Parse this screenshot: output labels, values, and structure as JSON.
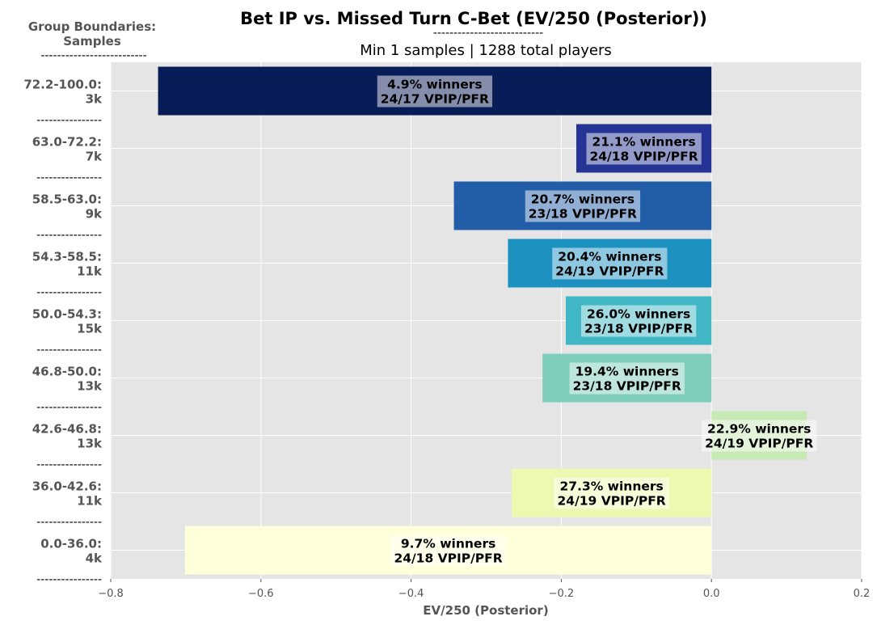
{
  "chart_data": {
    "type": "bar",
    "orientation": "horizontal",
    "title": "Bet IP vs. Missed Turn C-Bet (EV/250 (Posterior))",
    "title_underline": "---------------------------",
    "subtitle": "Min 1 samples | 1288 total players",
    "group_header_line1": "Group Boundaries:",
    "group_header_line2": "Samples",
    "group_header_underline": "--------------------------",
    "separator": "----------------",
    "xlabel": "EV/250 (Posterior)",
    "xlim": [
      -0.8,
      0.2
    ],
    "xticks": [
      -0.8,
      -0.6,
      -0.4,
      -0.2,
      0.0,
      0.2
    ],
    "xtick_labels": [
      "−0.8",
      "−0.6",
      "−0.4",
      "−0.2",
      "0.0",
      "0.2"
    ],
    "grid": true,
    "categories": [
      {
        "range": "72.2-100.0:",
        "samples": "3k",
        "value": -0.737,
        "color": "#081d58",
        "winners": "4.9% winners",
        "vpip_pfr": "24/17 VPIP/PFR"
      },
      {
        "range": "63.0-72.2:",
        "samples": "7k",
        "value": -0.18,
        "color": "#253494",
        "winners": "21.1% winners",
        "vpip_pfr": "24/18 VPIP/PFR"
      },
      {
        "range": "58.5-63.0:",
        "samples": "9k",
        "value": -0.343,
        "color": "#225ea8",
        "winners": "20.7% winners",
        "vpip_pfr": "23/18 VPIP/PFR"
      },
      {
        "range": "54.3-58.5:",
        "samples": "11k",
        "value": -0.271,
        "color": "#1d91c0",
        "winners": "20.4% winners",
        "vpip_pfr": "24/19 VPIP/PFR"
      },
      {
        "range": "50.0-54.3:",
        "samples": "15k",
        "value": -0.194,
        "color": "#41b6c4",
        "winners": "26.0% winners",
        "vpip_pfr": "23/18 VPIP/PFR"
      },
      {
        "range": "46.8-50.0:",
        "samples": "13k",
        "value": -0.225,
        "color": "#7fcdbb",
        "winners": "19.4% winners",
        "vpip_pfr": "23/18 VPIP/PFR"
      },
      {
        "range": "42.6-46.8:",
        "samples": "13k",
        "value": 0.127,
        "color": "#c7e9b4",
        "winners": "22.9% winners",
        "vpip_pfr": "24/19 VPIP/PFR"
      },
      {
        "range": "36.0-42.6:",
        "samples": "11k",
        "value": -0.266,
        "color": "#edf8b1",
        "winners": "27.3% winners",
        "vpip_pfr": "24/19 VPIP/PFR"
      },
      {
        "range": "0.0-36.0:",
        "samples": "4k",
        "value": -0.701,
        "color": "#ffffd9",
        "winners": "9.7% winners",
        "vpip_pfr": "24/18 VPIP/PFR"
      }
    ]
  }
}
